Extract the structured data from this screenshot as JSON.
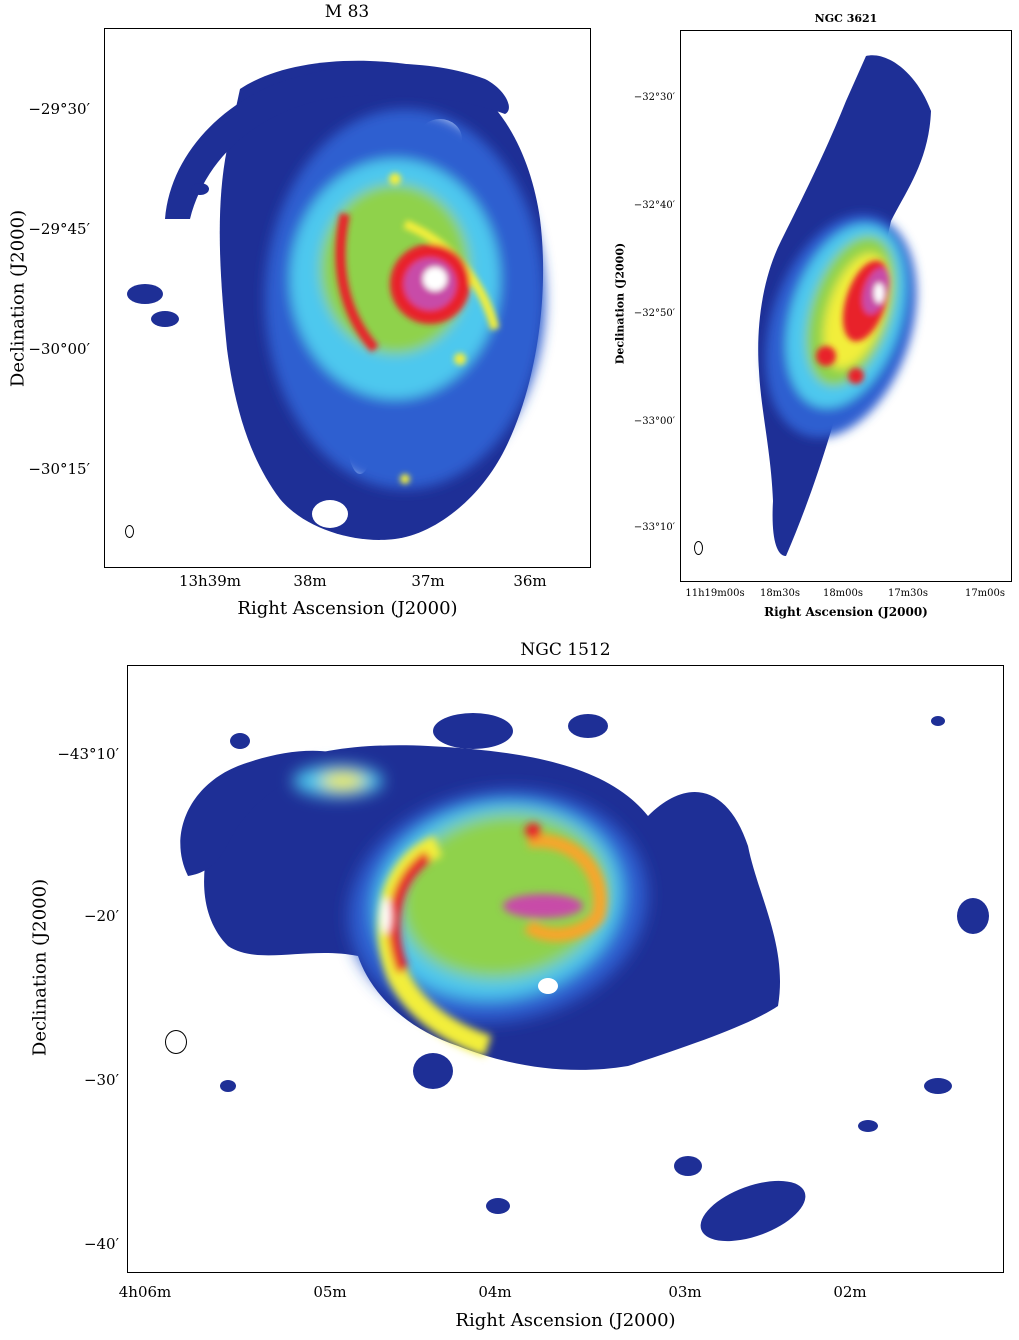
{
  "panels": {
    "m83": {
      "title": "M 83",
      "xlabel": "Right Ascension (J2000)",
      "ylabel": "Declination (J2000)",
      "yticks": [
        "−29°30′",
        "−29°45′",
        "−30°00′",
        "−30°15′"
      ],
      "xticks": [
        "13h39m",
        "38m",
        "37m",
        "36m"
      ]
    },
    "ngc3621": {
      "title": "NGC 3621",
      "xlabel": "Right Ascension (J2000)",
      "ylabel": "Declination (J2000)",
      "yticks": [
        "−32°30′",
        "−32°40′",
        "−32°50′",
        "−33°00′",
        "−33°10′"
      ],
      "xticks": [
        "11h19m00s",
        "18m30s",
        "18m00s",
        "17m30s",
        "17m00s"
      ]
    },
    "ngc1512": {
      "title": "NGC 1512",
      "xlabel": "Right Ascension (J2000)",
      "ylabel": "Declination (J2000)",
      "yticks": [
        "−43°10′",
        "−20′",
        "−30′",
        "−40′"
      ],
      "xticks": [
        "4h06m",
        "05m",
        "04m",
        "03m",
        "02m"
      ]
    }
  },
  "colors": {
    "dark_blue": "#1e2f96",
    "blue": "#2f5fd0",
    "cyan": "#4ec8ee",
    "green": "#8fd24c",
    "yellow": "#f2ee3a",
    "orange": "#f7a62a",
    "red": "#e8202a",
    "magenta": "#c84ca8",
    "white": "#ffffff"
  }
}
